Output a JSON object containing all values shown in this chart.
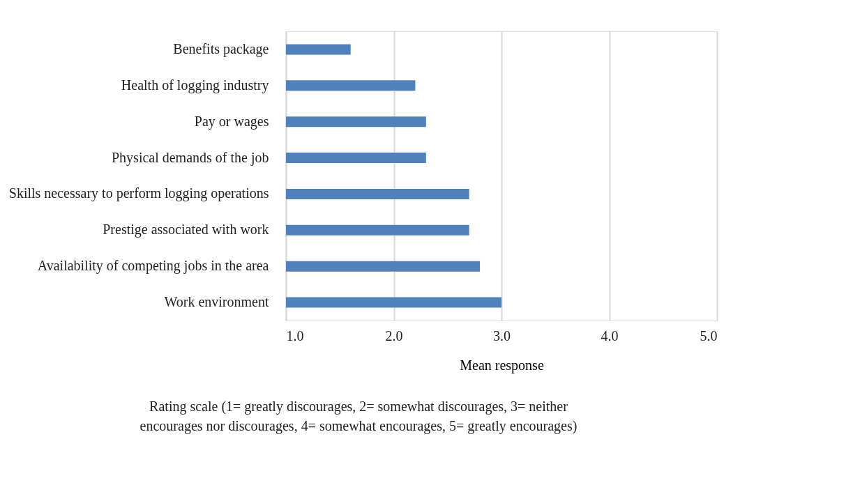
{
  "chart_data": {
    "type": "bar",
    "orientation": "horizontal",
    "categories": [
      "Benefits package",
      "Health of logging industry",
      "Pay or wages",
      "Physical demands of the job",
      "Skills necessary to perform logging operations",
      "Prestige associated with work",
      "Availability of competing jobs in the area",
      "Work environment"
    ],
    "values": [
      1.6,
      2.2,
      2.3,
      2.3,
      2.7,
      2.7,
      2.8,
      3.0
    ],
    "color": "#4f81bd",
    "xlim": [
      1,
      5
    ],
    "xticks": [
      {
        "value": 1,
        "label": "1.0"
      },
      {
        "value": 2,
        "label": "2.0"
      },
      {
        "value": 3,
        "label": "3.0"
      },
      {
        "value": 4,
        "label": "4.0"
      },
      {
        "value": 5,
        "label": "5.0"
      }
    ],
    "xlabel": "Mean response",
    "annotations": [
      "Rating scale (1= greatly discourages, 2= somewhat discourages, 3= neither encourages nor discourages, 4= somewhat encourages, 5= greatly encourages)"
    ],
    "grid": "x"
  }
}
